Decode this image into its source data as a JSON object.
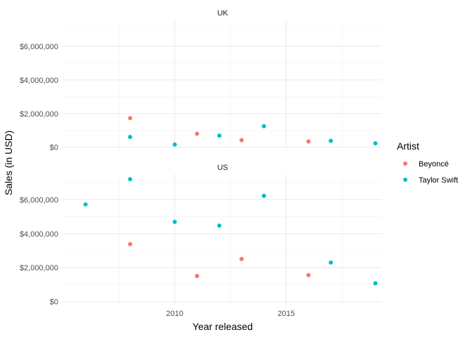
{
  "chart_data": {
    "type": "scatter",
    "facets": [
      "UK",
      "US"
    ],
    "xlabel": "Year released",
    "ylabel": "Sales (in USD)",
    "xlim": [
      2005.0,
      2019.3
    ],
    "ylim": [
      -180000,
      7500000
    ],
    "x_ticks": [
      {
        "value": 2010,
        "label": "2010"
      },
      {
        "value": 2015,
        "label": "2015"
      }
    ],
    "y_ticks": [
      {
        "value": 0,
        "label": "$0"
      },
      {
        "value": 2000000,
        "label": "$2,000,000"
      },
      {
        "value": 4000000,
        "label": "$4,000,000"
      },
      {
        "value": 6000000,
        "label": "$6,000,000"
      }
    ],
    "legend": {
      "title": "Artist",
      "position": "right"
    },
    "series": [
      {
        "name": "Beyoncé",
        "color": "#F8766D",
        "points": [
          {
            "facet": "UK",
            "x": 2008,
            "y": 1730000
          },
          {
            "facet": "UK",
            "x": 2011,
            "y": 800000
          },
          {
            "facet": "UK",
            "x": 2013,
            "y": 420000
          },
          {
            "facet": "UK",
            "x": 2016,
            "y": 340000
          },
          {
            "facet": "US",
            "x": 2008,
            "y": 3380000
          },
          {
            "facet": "US",
            "x": 2011,
            "y": 1510000
          },
          {
            "facet": "US",
            "x": 2013,
            "y": 2510000
          },
          {
            "facet": "US",
            "x": 2016,
            "y": 1560000
          }
        ]
      },
      {
        "name": "Taylor Swift",
        "color": "#00BFC4",
        "points": [
          {
            "facet": "UK",
            "x": 2008,
            "y": 610000
          },
          {
            "facet": "UK",
            "x": 2010,
            "y": 160000
          },
          {
            "facet": "UK",
            "x": 2012,
            "y": 690000
          },
          {
            "facet": "UK",
            "x": 2014,
            "y": 1250000
          },
          {
            "facet": "UK",
            "x": 2017,
            "y": 380000
          },
          {
            "facet": "UK",
            "x": 2019,
            "y": 230000
          },
          {
            "facet": "US",
            "x": 2006,
            "y": 5720000
          },
          {
            "facet": "US",
            "x": 2008,
            "y": 7200000
          },
          {
            "facet": "US",
            "x": 2010,
            "y": 4690000
          },
          {
            "facet": "US",
            "x": 2012,
            "y": 4470000
          },
          {
            "facet": "US",
            "x": 2014,
            "y": 6220000
          },
          {
            "facet": "US",
            "x": 2017,
            "y": 2300000
          },
          {
            "facet": "US",
            "x": 2019,
            "y": 1080000
          }
        ]
      }
    ]
  }
}
